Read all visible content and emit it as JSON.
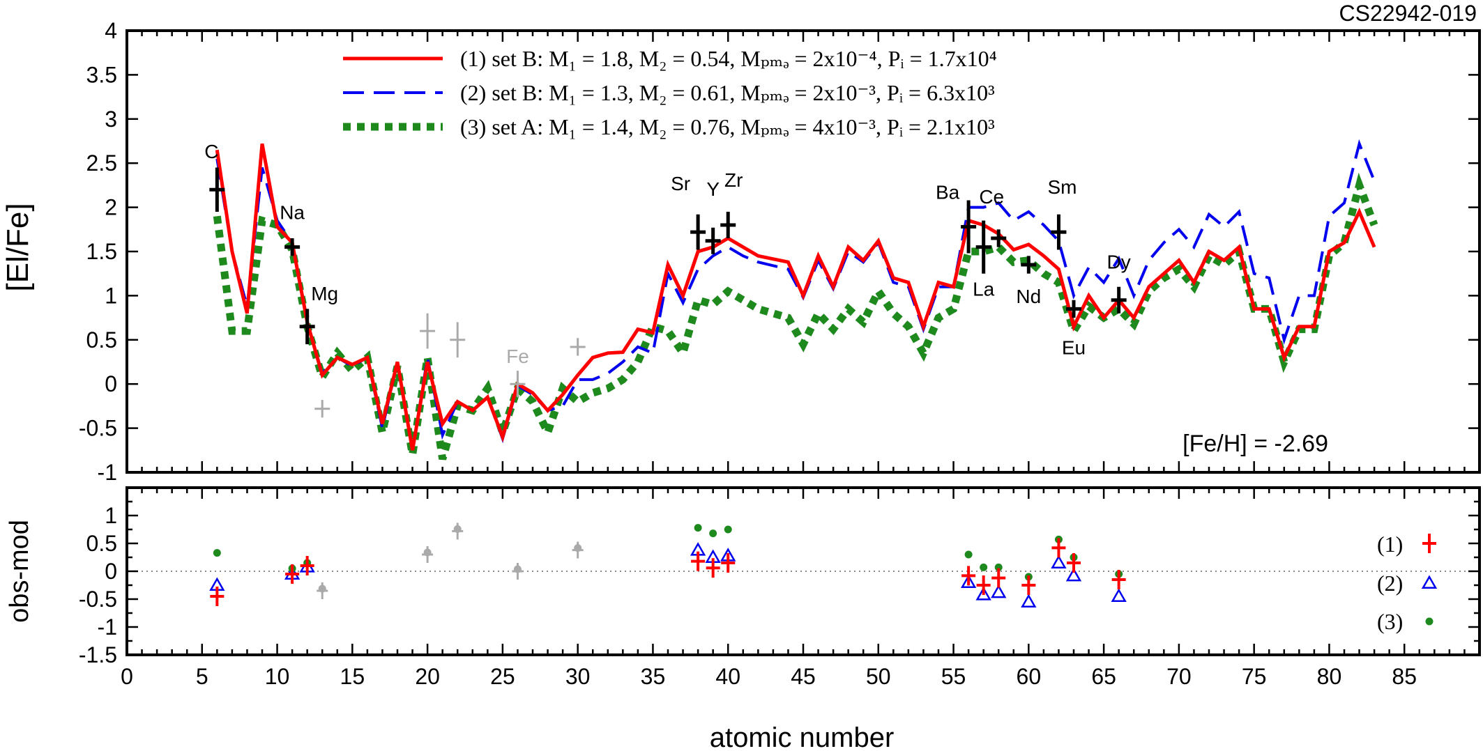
{
  "chart_data": [
    {
      "type": "line",
      "title": "CS22942-019",
      "ylabel": "[El/Fe]",
      "xlim": [
        0,
        90
      ],
      "ylim": [
        -1,
        4
      ],
      "yticks": [
        "4",
        "3.5",
        "3",
        "2.5",
        "2",
        "1.5",
        "1",
        "0.5",
        "0",
        "-0.5",
        "-1"
      ],
      "annotation": "[Fe/H] = -2.69",
      "colors": {
        "model1": "#ff0000",
        "model2": "#0000ee",
        "model3": "#1e8a1e",
        "obs": "#000000",
        "obs_grey": "#aaaaaa"
      },
      "legend": [
        {
          "label": "(1) set B: M₁ = 1.8,  M₂ = 0.54,  Mₚₘₔ = 2x10⁻⁴,  Pᵢ = 1.7x10⁴"
        },
        {
          "label": "(2) set B: M₁ = 1.3,  M₂ = 0.61,  Mₚₘₔ = 2x10⁻³,  Pᵢ = 6.3x10³"
        },
        {
          "label": "(3) set A: M₁ = 1.4,  M₂ = 0.76,  Mₚₘₔ = 4x10⁻³,  Pᵢ = 2.1x10³"
        }
      ],
      "series": [
        {
          "x": [
            6,
            7,
            8,
            9,
            10,
            11,
            12,
            13,
            14,
            15,
            16,
            17,
            18,
            19,
            20,
            21,
            22,
            23,
            24,
            25,
            26,
            27,
            28,
            29,
            30,
            31,
            32,
            33,
            34,
            35,
            36,
            37,
            38,
            39,
            40,
            41,
            42,
            44,
            45,
            46,
            47,
            48,
            49,
            50,
            51,
            52,
            53,
            54,
            55,
            56,
            57,
            58,
            59,
            60,
            61,
            62,
            63,
            64,
            65,
            66,
            67,
            68,
            69,
            70,
            71,
            72,
            73,
            74,
            75,
            76,
            77,
            78,
            79,
            80,
            81,
            82,
            83
          ],
          "y": [
            2.65,
            1.5,
            0.8,
            2.72,
            1.78,
            1.6,
            0.7,
            0.1,
            0.3,
            0.22,
            0.3,
            -0.45,
            0.25,
            -0.75,
            0.25,
            -0.45,
            -0.2,
            -0.3,
            -0.15,
            -0.6,
            0.0,
            -0.1,
            -0.3,
            -0.12,
            0.1,
            0.3,
            0.35,
            0.36,
            0.62,
            0.58,
            1.35,
            1.0,
            1.5,
            1.55,
            1.65,
            1.55,
            1.45,
            1.38,
            1.0,
            1.45,
            1.1,
            1.55,
            1.4,
            1.62,
            1.2,
            1.15,
            0.65,
            1.15,
            1.1,
            1.85,
            1.8,
            1.7,
            1.52,
            1.58,
            1.45,
            1.3,
            0.65,
            1.0,
            0.75,
            0.95,
            0.75,
            1.1,
            1.25,
            1.4,
            1.15,
            1.5,
            1.4,
            1.55,
            0.85,
            0.85,
            0.3,
            0.65,
            0.65,
            1.5,
            1.6,
            1.95,
            1.55
          ]
        },
        {
          "x": [
            6,
            7,
            8,
            9,
            10,
            11,
            12,
            13,
            14,
            15,
            16,
            17,
            18,
            19,
            20,
            21,
            22,
            23,
            24,
            25,
            26,
            27,
            28,
            29,
            30,
            31,
            32,
            33,
            34,
            35,
            36,
            37,
            38,
            39,
            40,
            41,
            42,
            44,
            45,
            46,
            47,
            48,
            49,
            50,
            51,
            52,
            53,
            54,
            55,
            56,
            57,
            58,
            59,
            60,
            61,
            62,
            63,
            64,
            65,
            66,
            67,
            68,
            69,
            70,
            71,
            72,
            73,
            74,
            75,
            76,
            77,
            78,
            79,
            80,
            81,
            82,
            83
          ],
          "y": [
            2.55,
            1.5,
            0.88,
            2.45,
            1.85,
            1.6,
            0.7,
            0.12,
            0.3,
            0.2,
            0.3,
            -0.5,
            0.25,
            -0.75,
            0.3,
            -0.58,
            -0.2,
            -0.3,
            -0.15,
            -0.62,
            -0.02,
            -0.12,
            -0.3,
            -0.25,
            0.05,
            0.05,
            0.12,
            0.25,
            0.42,
            0.35,
            1.25,
            0.92,
            1.3,
            1.45,
            1.55,
            1.45,
            1.38,
            1.3,
            0.98,
            1.4,
            1.08,
            1.5,
            1.38,
            1.6,
            1.15,
            1.1,
            0.62,
            1.1,
            1.1,
            2.0,
            2.0,
            2.05,
            1.85,
            1.95,
            1.8,
            1.62,
            1.0,
            1.32,
            1.15,
            1.42,
            1.0,
            1.4,
            1.6,
            1.75,
            1.55,
            1.92,
            1.78,
            1.95,
            1.25,
            1.2,
            0.5,
            1.0,
            1.0,
            1.9,
            2.05,
            2.72,
            2.3
          ]
        },
        {
          "x": [
            6,
            7,
            8,
            9,
            10,
            11,
            12,
            13,
            14,
            15,
            16,
            17,
            18,
            19,
            20,
            21,
            22,
            23,
            24,
            25,
            26,
            27,
            28,
            29,
            30,
            31,
            32,
            33,
            34,
            35,
            36,
            37,
            38,
            39,
            40,
            41,
            42,
            44,
            45,
            46,
            47,
            48,
            49,
            50,
            51,
            52,
            53,
            54,
            55,
            56,
            57,
            58,
            59,
            60,
            61,
            62,
            63,
            64,
            65,
            66,
            67,
            68,
            69,
            70,
            71,
            72,
            73,
            74,
            75,
            76,
            77,
            78,
            79,
            80,
            81,
            82,
            83
          ],
          "y": [
            1.9,
            0.6,
            0.6,
            1.85,
            1.8,
            1.52,
            0.65,
            0.08,
            0.35,
            0.15,
            0.3,
            -0.55,
            0.2,
            -0.8,
            0.3,
            -0.85,
            -0.25,
            -0.3,
            -0.05,
            -0.55,
            -0.05,
            -0.2,
            -0.55,
            -0.05,
            -0.2,
            -0.1,
            -0.05,
            0.05,
            0.25,
            0.65,
            0.6,
            0.35,
            0.95,
            0.9,
            1.05,
            0.95,
            0.85,
            0.75,
            0.45,
            0.8,
            0.62,
            0.85,
            0.7,
            1.05,
            0.8,
            0.65,
            0.35,
            0.75,
            0.85,
            1.5,
            1.5,
            1.55,
            1.38,
            1.4,
            1.25,
            1.15,
            0.6,
            0.88,
            0.75,
            0.85,
            0.68,
            1.05,
            1.2,
            1.3,
            1.1,
            1.45,
            1.35,
            1.5,
            0.85,
            0.85,
            0.25,
            0.62,
            0.62,
            1.45,
            1.6,
            2.25,
            1.8
          ]
        }
      ],
      "observations": [
        {
          "el": "C",
          "x": 6,
          "y": 2.2,
          "err": 0.25,
          "grey": false
        },
        {
          "el": "Na",
          "x": 11,
          "y": 1.55,
          "err": 0.1,
          "grey": false
        },
        {
          "el": "Mg",
          "x": 12,
          "y": 0.65,
          "err": 0.2,
          "grey": false
        },
        {
          "el": "",
          "x": 13,
          "y": -0.28,
          "err": 0.1,
          "grey": true
        },
        {
          "el": "",
          "x": 20,
          "y": 0.6,
          "err": 0.2,
          "grey": true
        },
        {
          "el": "",
          "x": 22,
          "y": 0.5,
          "err": 0.2,
          "grey": true
        },
        {
          "el": "Fe",
          "x": 26,
          "y": 0.0,
          "err": 0.15,
          "grey": true
        },
        {
          "el": "",
          "x": 30,
          "y": 0.42,
          "err": 0.1,
          "grey": true
        },
        {
          "el": "Sr",
          "x": 38,
          "y": 1.72,
          "err": 0.2,
          "grey": false
        },
        {
          "el": "Y",
          "x": 39,
          "y": 1.62,
          "err": 0.15,
          "grey": false
        },
        {
          "el": "Zr",
          "x": 40,
          "y": 1.8,
          "err": 0.15,
          "grey": false
        },
        {
          "el": "Ba",
          "x": 56,
          "y": 1.78,
          "err": 0.3,
          "grey": false
        },
        {
          "el": "La",
          "x": 57,
          "y": 1.55,
          "err": 0.3,
          "grey": false
        },
        {
          "el": "Ce",
          "x": 58,
          "y": 1.65,
          "err": 0.1,
          "grey": false
        },
        {
          "el": "Nd",
          "x": 60,
          "y": 1.35,
          "err": 0.1,
          "grey": false
        },
        {
          "el": "Sm",
          "x": 62,
          "y": 1.72,
          "err": 0.2,
          "grey": false
        },
        {
          "el": "Eu",
          "x": 63,
          "y": 0.85,
          "err": 0.1,
          "grey": false
        },
        {
          "el": "Dy",
          "x": 66,
          "y": 0.95,
          "err": 0.15,
          "grey": false
        }
      ]
    },
    {
      "type": "scatter",
      "ylabel": "obs-mod",
      "xlabel": "atomic number",
      "xlim": [
        0,
        90
      ],
      "ylim": [
        -1.5,
        1.5
      ],
      "xticks": [
        "0",
        "5",
        "10",
        "15",
        "20",
        "25",
        "30",
        "35",
        "40",
        "45",
        "50",
        "55",
        "60",
        "65",
        "70",
        "75",
        "80",
        "85"
      ],
      "yticks": [
        "1",
        "0.5",
        "0",
        "-0.5",
        "-1",
        "-1.5"
      ],
      "legend": [
        {
          "label": "(1)"
        },
        {
          "label": "(2)"
        },
        {
          "label": "(3)"
        }
      ],
      "series": [
        {
          "x": [
            6,
            11,
            12,
            38,
            39,
            40,
            56,
            57,
            58,
            60,
            62,
            63,
            66
          ],
          "y": [
            -0.45,
            -0.05,
            0.1,
            0.18,
            0.06,
            0.15,
            -0.08,
            -0.25,
            -0.12,
            -0.25,
            0.42,
            0.15,
            -0.15
          ]
        },
        {
          "x": [
            6,
            11,
            12,
            38,
            39,
            40,
            56,
            57,
            58,
            60,
            62,
            63,
            66
          ],
          "y": [
            -0.25,
            -0.05,
            0.08,
            0.38,
            0.25,
            0.28,
            -0.2,
            -0.42,
            -0.38,
            -0.55,
            0.15,
            -0.08,
            -0.45
          ]
        },
        {
          "x": [
            6,
            11,
            12,
            38,
            39,
            40,
            56,
            57,
            58,
            60,
            62,
            63,
            66
          ],
          "y": [
            0.33,
            0.05,
            0.15,
            0.78,
            0.68,
            0.75,
            0.3,
            0.07,
            0.07,
            -0.1,
            0.57,
            0.25,
            -0.05
          ]
        }
      ],
      "grey_points": [
        {
          "x": 13,
          "y": -0.35
        },
        {
          "x": 20,
          "y": 0.3
        },
        {
          "x": 22,
          "y": 0.72
        },
        {
          "x": 26,
          "y": 0.0
        },
        {
          "x": 30,
          "y": 0.38
        }
      ]
    }
  ]
}
